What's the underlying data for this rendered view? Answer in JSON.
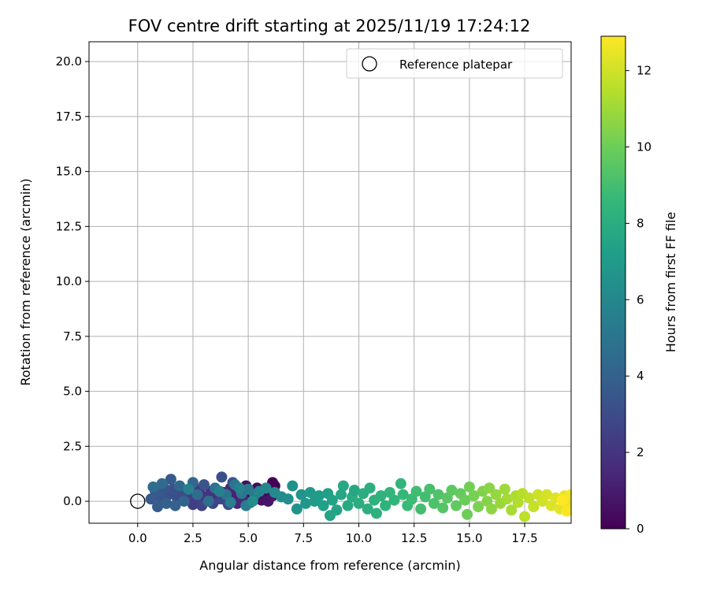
{
  "chart_data": {
    "type": "scatter",
    "title": "FOV centre drift starting at 2025/11/19 17:24:12",
    "xlabel": "Angular distance from reference (arcmin)",
    "ylabel": "Rotation from reference (arcmin)",
    "xlim": [
      -2.2,
      19.6
    ],
    "ylim": [
      -1.0,
      20.9
    ],
    "xticks": [
      0.0,
      2.5,
      5.0,
      7.5,
      10.0,
      12.5,
      15.0,
      17.5
    ],
    "xtick_labels": [
      "0.0",
      "2.5",
      "5.0",
      "7.5",
      "10.0",
      "12.5",
      "15.0",
      "17.5"
    ],
    "yticks": [
      0.0,
      2.5,
      5.0,
      7.5,
      10.0,
      12.5,
      15.0,
      17.5,
      20.0
    ],
    "ytick_labels": [
      "0.0",
      "2.5",
      "5.0",
      "7.5",
      "10.0",
      "12.5",
      "15.0",
      "17.5",
      "20.0"
    ],
    "grid": true,
    "legend": {
      "location": "top-right",
      "entries": [
        "Reference platepar"
      ]
    },
    "reference_point": {
      "x": 0.0,
      "y": 0.0,
      "label": "Reference platepar"
    },
    "colorbar": {
      "label": "Hours from first FF file",
      "min": 0,
      "max": 12.9,
      "ticks": [
        0,
        2,
        4,
        6,
        8,
        10,
        12
      ],
      "tick_labels": [
        "0",
        "2",
        "4",
        "6",
        "8",
        "10",
        "12"
      ],
      "colormap": [
        "#440154",
        "#482878",
        "#3e4989",
        "#31688e",
        "#26828e",
        "#1f9e89",
        "#35b779",
        "#6ece58",
        "#b5de2b",
        "#fde725"
      ]
    },
    "series": [
      {
        "name": "FOV centre drift",
        "color_by": "hours",
        "points": [
          {
            "x": 6.1,
            "y": 0.85,
            "h": 0.0
          },
          {
            "x": 6.2,
            "y": 0.7,
            "h": 0.05
          },
          {
            "x": 5.9,
            "y": 0.55,
            "h": 0.1
          },
          {
            "x": 6.0,
            "y": 0.35,
            "h": 0.15
          },
          {
            "x": 5.7,
            "y": 0.5,
            "h": 0.2
          },
          {
            "x": 5.5,
            "y": 0.3,
            "h": 0.25
          },
          {
            "x": 5.8,
            "y": 0.2,
            "h": 0.3
          },
          {
            "x": 5.4,
            "y": 0.6,
            "h": 0.35
          },
          {
            "x": 5.2,
            "y": 0.4,
            "h": 0.4
          },
          {
            "x": 4.9,
            "y": 0.7,
            "h": 0.45
          },
          {
            "x": 5.0,
            "y": 0.25,
            "h": 0.5
          },
          {
            "x": 5.3,
            "y": 0.1,
            "h": 0.55
          },
          {
            "x": 5.6,
            "y": 0.05,
            "h": 0.6
          },
          {
            "x": 5.9,
            "y": 0.0,
            "h": 0.7
          },
          {
            "x": 6.1,
            "y": 0.25,
            "h": 0.8
          },
          {
            "x": 4.7,
            "y": 0.55,
            "h": 1.0
          },
          {
            "x": 4.6,
            "y": 0.1,
            "h": 1.1
          },
          {
            "x": 4.4,
            "y": 0.3,
            "h": 1.2
          },
          {
            "x": 4.2,
            "y": 0.6,
            "h": 1.3
          },
          {
            "x": 4.5,
            "y": -0.1,
            "h": 1.4
          },
          {
            "x": 4.8,
            "y": 0.0,
            "h": 1.5
          },
          {
            "x": 5.1,
            "y": -0.05,
            "h": 1.6
          },
          {
            "x": 3.9,
            "y": 0.4,
            "h": 1.7
          },
          {
            "x": 3.6,
            "y": 0.1,
            "h": 1.8
          },
          {
            "x": 3.3,
            "y": 0.45,
            "h": 1.9
          },
          {
            "x": 3.0,
            "y": 0.2,
            "h": 2.0
          },
          {
            "x": 2.8,
            "y": 0.55,
            "h": 2.1
          },
          {
            "x": 2.6,
            "y": 0.0,
            "h": 2.2
          },
          {
            "x": 2.4,
            "y": 0.35,
            "h": 2.3
          },
          {
            "x": 2.5,
            "y": -0.15,
            "h": 2.4
          },
          {
            "x": 2.2,
            "y": 0.15,
            "h": 2.5
          },
          {
            "x": 2.9,
            "y": -0.2,
            "h": 2.6
          },
          {
            "x": 3.4,
            "y": -0.1,
            "h": 2.7
          },
          {
            "x": 3.8,
            "y": 0.1,
            "h": 2.8
          },
          {
            "x": 4.1,
            "y": -0.15,
            "h": 2.9
          },
          {
            "x": 2.0,
            "y": 0.4,
            "h": 3.0
          },
          {
            "x": 1.8,
            "y": 0.1,
            "h": 3.1
          },
          {
            "x": 1.6,
            "y": 0.55,
            "h": 3.2
          },
          {
            "x": 1.4,
            "y": 0.3,
            "h": 3.3
          },
          {
            "x": 1.2,
            "y": 0.6,
            "h": 3.4
          },
          {
            "x": 1.0,
            "y": 0.2,
            "h": 3.5
          },
          {
            "x": 0.8,
            "y": 0.45,
            "h": 3.6
          },
          {
            "x": 0.6,
            "y": 0.1,
            "h": 3.7
          },
          {
            "x": 0.9,
            "y": -0.25,
            "h": 3.8
          },
          {
            "x": 1.3,
            "y": -0.1,
            "h": 3.9
          },
          {
            "x": 1.7,
            "y": -0.2,
            "h": 4.0
          },
          {
            "x": 2.1,
            "y": 0.0,
            "h": 4.1
          },
          {
            "x": 1.5,
            "y": 1.0,
            "h": 3.6
          },
          {
            "x": 3.8,
            "y": 1.1,
            "h": 3.2
          },
          {
            "x": 4.3,
            "y": 0.85,
            "h": 3.3
          },
          {
            "x": 3.0,
            "y": 0.75,
            "h": 3.4
          },
          {
            "x": 2.5,
            "y": 0.85,
            "h": 4.2
          },
          {
            "x": 1.9,
            "y": 0.7,
            "h": 4.3
          },
          {
            "x": 1.1,
            "y": 0.8,
            "h": 4.4
          },
          {
            "x": 0.7,
            "y": 0.65,
            "h": 4.5
          },
          {
            "x": 2.7,
            "y": 0.3,
            "h": 4.6
          },
          {
            "x": 3.2,
            "y": 0.0,
            "h": 4.7
          },
          {
            "x": 3.5,
            "y": 0.6,
            "h": 4.8
          },
          {
            "x": 4.0,
            "y": 0.3,
            "h": 4.9
          },
          {
            "x": 4.4,
            "y": 0.75,
            "h": 5.0
          },
          {
            "x": 4.7,
            "y": 0.35,
            "h": 5.1
          },
          {
            "x": 5.0,
            "y": 0.55,
            "h": 5.2
          },
          {
            "x": 5.3,
            "y": 0.3,
            "h": 5.3
          },
          {
            "x": 4.9,
            "y": -0.2,
            "h": 5.4
          },
          {
            "x": 4.2,
            "y": -0.05,
            "h": 5.5
          },
          {
            "x": 3.7,
            "y": 0.45,
            "h": 5.6
          },
          {
            "x": 2.3,
            "y": 0.55,
            "h": 5.7
          },
          {
            "x": 4.6,
            "y": 0.6,
            "h": 5.8
          },
          {
            "x": 5.5,
            "y": 0.45,
            "h": 5.9
          },
          {
            "x": 5.8,
            "y": 0.6,
            "h": 6.0
          },
          {
            "x": 6.2,
            "y": 0.4,
            "h": 6.1
          },
          {
            "x": 6.5,
            "y": 0.2,
            "h": 6.2
          },
          {
            "x": 5.2,
            "y": 0.0,
            "h": 6.3
          },
          {
            "x": 6.8,
            "y": 0.1,
            "h": 6.4
          },
          {
            "x": 7.0,
            "y": 0.7,
            "h": 6.5
          },
          {
            "x": 7.2,
            "y": -0.35,
            "h": 6.6
          },
          {
            "x": 7.4,
            "y": 0.3,
            "h": 6.7
          },
          {
            "x": 7.6,
            "y": -0.1,
            "h": 6.8
          },
          {
            "x": 7.8,
            "y": 0.4,
            "h": 6.9
          },
          {
            "x": 8.0,
            "y": 0.0,
            "h": 7.0
          },
          {
            "x": 8.2,
            "y": 0.25,
            "h": 7.1
          },
          {
            "x": 8.4,
            "y": -0.2,
            "h": 7.2
          },
          {
            "x": 8.6,
            "y": 0.35,
            "h": 7.3
          },
          {
            "x": 8.8,
            "y": 0.05,
            "h": 7.4
          },
          {
            "x": 8.7,
            "y": -0.65,
            "h": 7.5
          },
          {
            "x": 9.0,
            "y": -0.4,
            "h": 7.5
          },
          {
            "x": 9.2,
            "y": 0.3,
            "h": 7.6
          },
          {
            "x": 9.3,
            "y": 0.7,
            "h": 7.7
          },
          {
            "x": 9.5,
            "y": -0.2,
            "h": 7.8
          },
          {
            "x": 9.7,
            "y": 0.2,
            "h": 7.9
          },
          {
            "x": 9.8,
            "y": 0.5,
            "h": 7.6
          },
          {
            "x": 10.0,
            "y": -0.1,
            "h": 8.0
          },
          {
            "x": 10.2,
            "y": 0.35,
            "h": 8.0
          },
          {
            "x": 10.4,
            "y": -0.35,
            "h": 8.1
          },
          {
            "x": 10.5,
            "y": 0.6,
            "h": 8.1
          },
          {
            "x": 10.7,
            "y": 0.05,
            "h": 8.2
          },
          {
            "x": 10.8,
            "y": -0.55,
            "h": 8.2
          },
          {
            "x": 11.0,
            "y": 0.25,
            "h": 8.3
          },
          {
            "x": 11.2,
            "y": -0.2,
            "h": 8.3
          },
          {
            "x": 11.4,
            "y": 0.4,
            "h": 8.4
          },
          {
            "x": 11.6,
            "y": 0.05,
            "h": 8.4
          },
          {
            "x": 11.9,
            "y": 0.8,
            "h": 8.5
          },
          {
            "x": 12.0,
            "y": 0.3,
            "h": 8.6
          },
          {
            "x": 12.2,
            "y": -0.2,
            "h": 8.7
          },
          {
            "x": 12.4,
            "y": 0.1,
            "h": 8.8
          },
          {
            "x": 12.6,
            "y": 0.45,
            "h": 8.9
          },
          {
            "x": 12.8,
            "y": -0.35,
            "h": 9.0
          },
          {
            "x": 13.0,
            "y": 0.2,
            "h": 9.0
          },
          {
            "x": 13.2,
            "y": 0.55,
            "h": 9.1
          },
          {
            "x": 13.4,
            "y": -0.1,
            "h": 9.2
          },
          {
            "x": 13.6,
            "y": 0.3,
            "h": 9.3
          },
          {
            "x": 13.8,
            "y": -0.3,
            "h": 9.4
          },
          {
            "x": 14.0,
            "y": 0.15,
            "h": 9.5
          },
          {
            "x": 14.2,
            "y": 0.5,
            "h": 9.6
          },
          {
            "x": 14.4,
            "y": -0.2,
            "h": 9.7
          },
          {
            "x": 14.6,
            "y": 0.35,
            "h": 9.8
          },
          {
            "x": 14.8,
            "y": 0.05,
            "h": 9.9
          },
          {
            "x": 14.9,
            "y": -0.6,
            "h": 10.0
          },
          {
            "x": 15.0,
            "y": 0.65,
            "h": 10.1
          },
          {
            "x": 15.2,
            "y": 0.25,
            "h": 10.2
          },
          {
            "x": 15.4,
            "y": -0.25,
            "h": 10.3
          },
          {
            "x": 15.6,
            "y": 0.45,
            "h": 10.4
          },
          {
            "x": 15.8,
            "y": 0.0,
            "h": 10.5
          },
          {
            "x": 15.9,
            "y": 0.6,
            "h": 10.6
          },
          {
            "x": 16.0,
            "y": -0.35,
            "h": 10.7
          },
          {
            "x": 16.2,
            "y": 0.3,
            "h": 10.8
          },
          {
            "x": 16.4,
            "y": -0.1,
            "h": 10.9
          },
          {
            "x": 16.6,
            "y": 0.55,
            "h": 11.0
          },
          {
            "x": 16.7,
            "y": 0.1,
            "h": 11.1
          },
          {
            "x": 16.9,
            "y": -0.4,
            "h": 11.2
          },
          {
            "x": 17.1,
            "y": 0.25,
            "h": 11.3
          },
          {
            "x": 17.2,
            "y": -0.05,
            "h": 11.4
          },
          {
            "x": 17.4,
            "y": 0.35,
            "h": 11.5
          },
          {
            "x": 17.5,
            "y": -0.7,
            "h": 11.6
          },
          {
            "x": 17.7,
            "y": 0.15,
            "h": 11.7
          },
          {
            "x": 17.9,
            "y": -0.25,
            "h": 11.8
          },
          {
            "x": 18.1,
            "y": 0.3,
            "h": 11.9
          },
          {
            "x": 18.3,
            "y": 0.0,
            "h": 12.0
          },
          {
            "x": 18.5,
            "y": 0.3,
            "h": 12.1
          },
          {
            "x": 18.7,
            "y": -0.2,
            "h": 12.2
          },
          {
            "x": 18.9,
            "y": 0.15,
            "h": 12.3
          },
          {
            "x": 19.1,
            "y": -0.35,
            "h": 12.4
          },
          {
            "x": 19.3,
            "y": 0.25,
            "h": 12.5
          },
          {
            "x": 19.5,
            "y": -0.1,
            "h": 12.6
          },
          {
            "x": 19.6,
            "y": 0.3,
            "h": 12.7
          },
          {
            "x": 19.4,
            "y": -0.45,
            "h": 12.8
          },
          {
            "x": 19.2,
            "y": 0.05,
            "h": 12.9
          }
        ]
      }
    ]
  }
}
